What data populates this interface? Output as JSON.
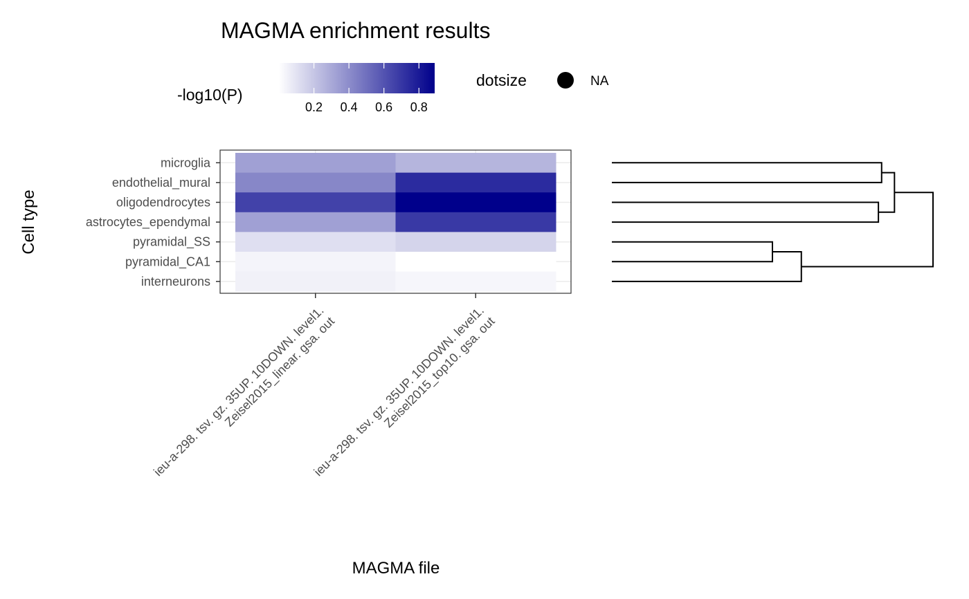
{
  "chart_data": {
    "type": "heatmap",
    "title": "MAGMA enrichment results",
    "xlabel": "MAGMA file",
    "ylabel": "Cell type",
    "columns": [
      [
        "ieu-a-298. tsv. gz. 35UP. 10DOWN. level1.",
        "Zeisel2015_linear. gsa. out"
      ],
      [
        "ieu-a-298. tsv. gz. 35UP. 10DOWN. level1.",
        "Zeisel2015_top10. gsa. out"
      ]
    ],
    "rows": [
      "microglia",
      "endothelial_mural",
      "oligodendrocytes",
      "astrocytes_ependymal",
      "pyramidal_SS",
      "pyramidal_CA1",
      "interneurons"
    ],
    "values": [
      [
        0.33,
        0.26
      ],
      [
        0.42,
        0.74
      ],
      [
        0.66,
        0.89
      ],
      [
        0.33,
        0.69
      ],
      [
        0.11,
        0.15
      ],
      [
        0.04,
        0.0
      ],
      [
        0.05,
        0.03
      ]
    ],
    "color_min": "#ffffff",
    "color_max": "#00008b",
    "value_range": [
      0.0,
      0.89
    ],
    "legend": {
      "title": "-log10(P)",
      "ticks": [
        0.2,
        0.4,
        0.6,
        0.8
      ],
      "tick_labels": [
        "0.2",
        "0.4",
        "0.6",
        "0.8"
      ],
      "size_title": "dotsize",
      "size_label": "NA"
    },
    "dendrogram": {
      "merges": [
        {
          "a": "microglia",
          "b": "endothelial_mural",
          "height": 0.16
        },
        {
          "a": "oligodendrocytes",
          "b": "astrocytes_ependymal",
          "height": 0.17
        },
        {
          "a": "pyramidal_SS",
          "b": "pyramidal_CA1",
          "height": 0.5
        },
        {
          "a": "m3",
          "b": "interneurons",
          "height": 0.41
        },
        {
          "a": "m1",
          "b": "m2",
          "height": 0.12
        },
        {
          "a": "m5",
          "b": "m4",
          "height": 0.0
        }
      ]
    },
    "grid": true
  }
}
